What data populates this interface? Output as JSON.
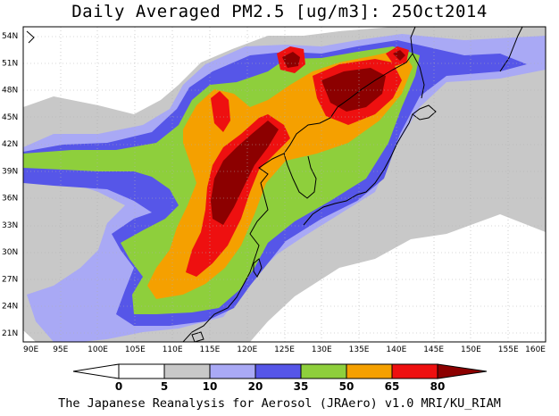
{
  "title": "Daily Averaged PM2.5 [ug/m3]: 25Oct2014",
  "footer": "The Japanese Reanalysis for Aerosol (JRAero) v1.0 MRI/KU_RIAM",
  "map": {
    "lon_range": [
      90,
      160
    ],
    "lat_range": [
      20,
      55
    ],
    "lon_ticks": [
      "90E",
      "95E",
      "100E",
      "105E",
      "110E",
      "115E",
      "120E",
      "125E",
      "130E",
      "135E",
      "140E",
      "145E",
      "150E",
      "155E",
      "160E"
    ],
    "lat_ticks": [
      "54N",
      "51N",
      "48N",
      "45N",
      "42N",
      "39N",
      "36N",
      "33N",
      "30N",
      "27N",
      "24N",
      "21N"
    ],
    "grid": true
  },
  "colorbar": {
    "levels": [
      "0",
      "5",
      "10",
      "20",
      "35",
      "50",
      "65",
      "80"
    ],
    "colors": [
      "#ffffff",
      "#c8c8c8",
      "#a9a9f5",
      "#5656e8",
      "#8ecf3c",
      "#f5a000",
      "#ee1010",
      "#8c0000"
    ]
  }
}
